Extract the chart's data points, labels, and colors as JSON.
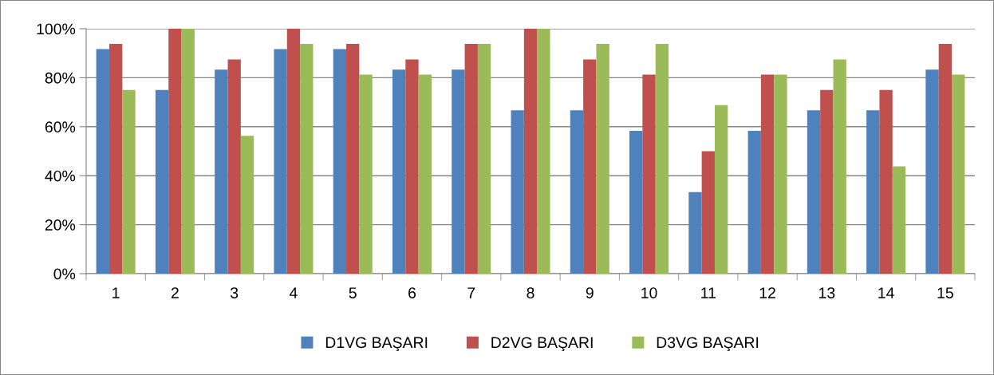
{
  "chart_data": {
    "type": "bar",
    "categories": [
      "1",
      "2",
      "3",
      "4",
      "5",
      "6",
      "7",
      "8",
      "9",
      "10",
      "11",
      "12",
      "13",
      "14",
      "15"
    ],
    "series": [
      {
        "name": "D1VG BAŞARI",
        "color": "#4f81bd",
        "values": [
          91.7,
          75,
          83.3,
          91.7,
          91.7,
          83.3,
          83.3,
          66.7,
          66.7,
          58.3,
          33.3,
          58.3,
          66.7,
          66.7,
          83.3
        ]
      },
      {
        "name": "D2VG BAŞARI",
        "color": "#c0504d",
        "values": [
          93.8,
          100,
          87.5,
          100,
          93.8,
          87.5,
          93.8,
          100,
          87.5,
          81.3,
          50,
          81.3,
          75,
          75,
          93.8
        ]
      },
      {
        "name": "D3VG BAŞARI",
        "color": "#9bbb59",
        "values": [
          75,
          100,
          56.3,
          93.8,
          81.3,
          81.3,
          93.8,
          100,
          93.8,
          93.8,
          68.8,
          81.3,
          87.5,
          43.8,
          81.3
        ]
      }
    ],
    "ylim": [
      0,
      100
    ],
    "yticks": [
      {
        "value": 0,
        "label": "0%"
      },
      {
        "value": 20,
        "label": "20%"
      },
      {
        "value": 40,
        "label": "40%"
      },
      {
        "value": 60,
        "label": "60%"
      },
      {
        "value": 80,
        "label": "80%"
      },
      {
        "value": 100,
        "label": "100%"
      }
    ],
    "grid": "y",
    "legend": "bottom"
  }
}
